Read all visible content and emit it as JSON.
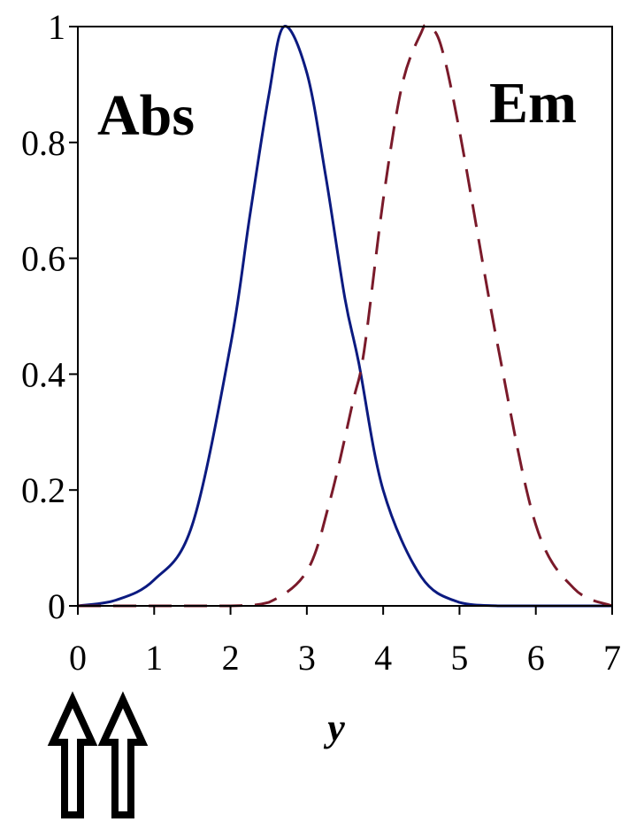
{
  "chart_data": {
    "type": "line",
    "xlabel": "y",
    "ylabel": "",
    "xlim": [
      0,
      7
    ],
    "ylim": [
      0,
      1
    ],
    "x_ticks": [
      "0",
      "1",
      "2",
      "3",
      "4",
      "5",
      "6",
      "7"
    ],
    "y_ticks": [
      "0",
      "0.2",
      "0.4",
      "0.6",
      "0.8",
      "1"
    ],
    "grid": false,
    "legend": "none",
    "annotations": [
      {
        "text": "Abs",
        "near_series": 0
      },
      {
        "text": "Em",
        "near_series": 1
      }
    ],
    "markers": [
      {
        "type": "up-arrow",
        "x": 0.0
      },
      {
        "type": "up-arrow",
        "x": 0.66
      }
    ],
    "series": [
      {
        "color": "#0b1a80",
        "dash": "solid",
        "x": [
          0,
          0.5,
          1.0,
          1.5,
          2.0,
          2.25,
          2.5,
          2.7,
          3.0,
          3.25,
          3.5,
          3.68,
          4.0,
          4.5,
          5.0,
          5.5,
          6.0,
          6.5,
          7.0
        ],
        "y": [
          0.0,
          0.01,
          0.045,
          0.14,
          0.45,
          0.67,
          0.88,
          1.0,
          0.92,
          0.74,
          0.53,
          0.42,
          0.2,
          0.05,
          0.006,
          0.0,
          0.0,
          0.0,
          0.0
        ]
      },
      {
        "color": "#7a1a2a",
        "dash": "dashed",
        "x": [
          0,
          1.0,
          2.0,
          2.5,
          3.0,
          3.3,
          3.6,
          3.75,
          4.0,
          4.25,
          4.5,
          4.58,
          4.75,
          5.0,
          5.5,
          6.0,
          6.5,
          7.0
        ],
        "y": [
          0.0,
          0.0,
          0.0,
          0.006,
          0.06,
          0.18,
          0.35,
          0.44,
          0.7,
          0.9,
          0.99,
          1.0,
          0.97,
          0.82,
          0.45,
          0.14,
          0.03,
          0.0
        ]
      }
    ]
  }
}
